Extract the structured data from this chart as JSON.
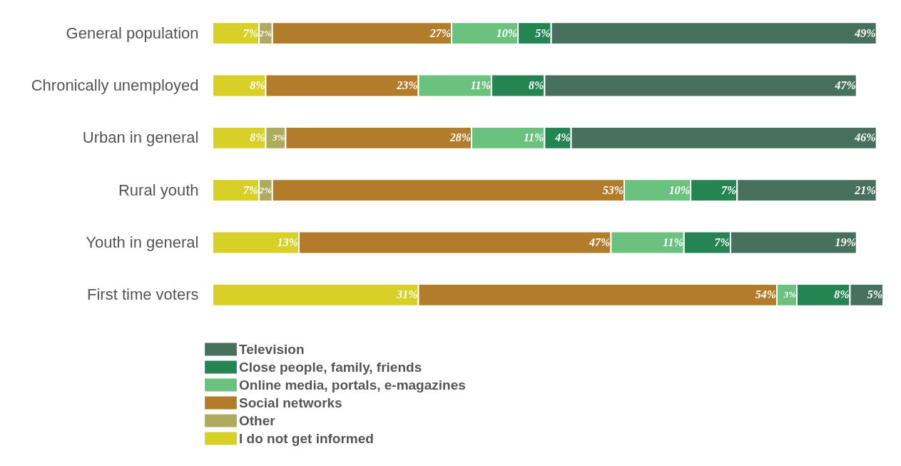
{
  "chart_data": {
    "type": "bar",
    "orientation": "horizontal",
    "stacked": true,
    "legend": "bottom",
    "tick_labels": "y",
    "categories": [
      "General population",
      "Chronically unemployed",
      "Urban in general",
      "Rural youth",
      "Youth in general",
      "First time voters"
    ],
    "series": [
      {
        "name": "I do not get informed",
        "color": "#d8cf27",
        "values": [
          7,
          8,
          8,
          7,
          13,
          31
        ],
        "value_labels": [
          "7%",
          "8%",
          "8%",
          "7%",
          "13%",
          "31%"
        ]
      },
      {
        "name": "Other",
        "color": "#aeab5e",
        "values": [
          2,
          null,
          3,
          2,
          null,
          null
        ],
        "value_labels": [
          "2%",
          null,
          "3%",
          "2%",
          null,
          null
        ]
      },
      {
        "name": "Social networks",
        "color": "#b37c2a",
        "values": [
          27,
          23,
          28,
          53,
          47,
          54
        ],
        "value_labels": [
          "27%",
          "23%",
          "28%",
          "53%",
          "47%",
          "54%"
        ]
      },
      {
        "name": "Online media, portals, e-magazines",
        "color": "#6bc27f",
        "values": [
          10,
          11,
          11,
          10,
          11,
          3
        ],
        "value_labels": [
          "10%",
          "11%",
          "11%",
          "10%",
          "11%",
          "3%"
        ]
      },
      {
        "name": "Close people, family, friends",
        "color": "#248553",
        "values": [
          5,
          8,
          4,
          7,
          7,
          8
        ],
        "value_labels": [
          "5%",
          "8%",
          "4%",
          "7%",
          "7%",
          "8%"
        ]
      },
      {
        "name": "Television",
        "color": "#47705f",
        "values": [
          49,
          47,
          46,
          21,
          19,
          5
        ],
        "value_labels": [
          "49%",
          "47%",
          "46%",
          "21%",
          "19%",
          "5%"
        ]
      }
    ]
  }
}
